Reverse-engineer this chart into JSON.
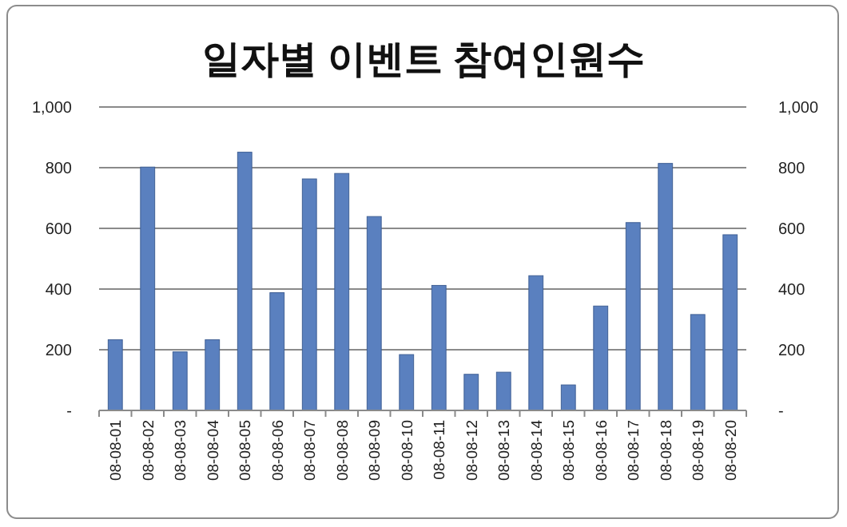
{
  "chart_data": {
    "type": "bar",
    "title": "일자별 이벤트 참여인원수",
    "categories": [
      "08-08-01",
      "08-08-02",
      "08-08-03",
      "08-08-04",
      "08-08-05",
      "08-08-06",
      "08-08-07",
      "08-08-08",
      "08-08-09",
      "08-08-10",
      "08-08-11",
      "08-08-12",
      "08-08-13",
      "08-08-14",
      "08-08-15",
      "08-08-16",
      "08-08-17",
      "08-08-18",
      "08-08-19",
      "08-08-20"
    ],
    "values": [
      233,
      802,
      193,
      233,
      851,
      388,
      763,
      781,
      639,
      184,
      412,
      119,
      126,
      444,
      84,
      344,
      619,
      814,
      316,
      579
    ],
    "color": "#5a80bf",
    "ylim": [
      0,
      1000
    ],
    "yticks": [
      {
        "value": 0,
        "label": "-"
      },
      200,
      400,
      600,
      800,
      {
        "value": 1000,
        "label": "1,000"
      }
    ],
    "y2lim": [
      0,
      1000
    ],
    "y2ticks": [
      {
        "value": 0,
        "label": "-"
      },
      200,
      400,
      600,
      800,
      {
        "value": 1000,
        "label": "1,000"
      }
    ],
    "grid": "y"
  }
}
